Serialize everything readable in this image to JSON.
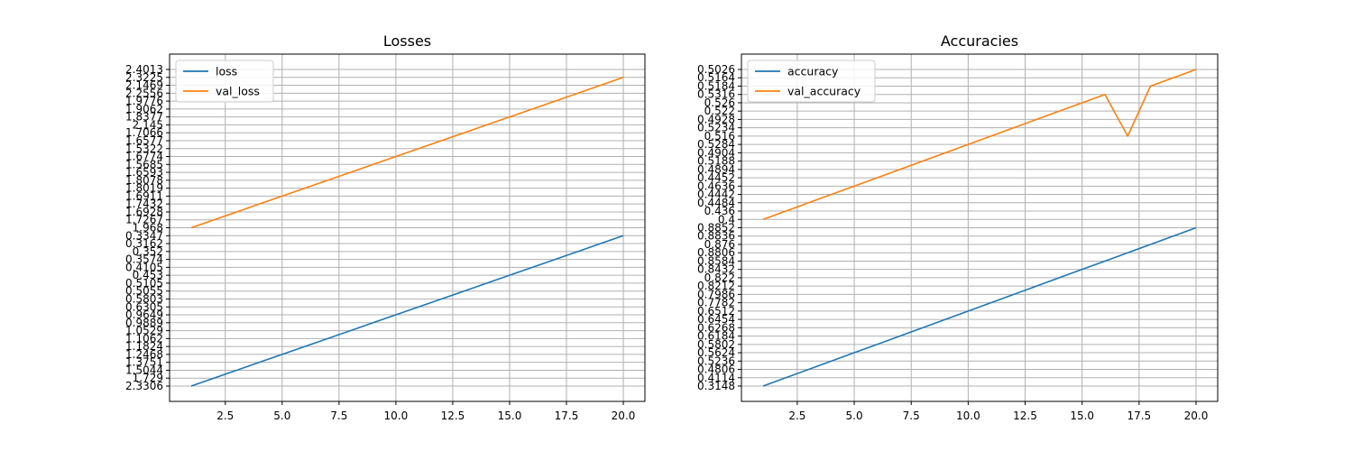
{
  "colors": {
    "series1": "#1f77b4",
    "series2": "#ff7f0e",
    "grid": "#b0b0b0"
  },
  "chart_data": [
    {
      "type": "line",
      "title": "Losses",
      "xlabel": "",
      "ylabel": "",
      "xlim": [
        0.05,
        20.95
      ],
      "xticks": [
        2.5,
        5.0,
        7.5,
        10.0,
        12.5,
        15.0,
        17.5,
        20.0
      ],
      "xtick_labels": [
        "2.5",
        "5.0",
        "7.5",
        "10.0",
        "12.5",
        "15.0",
        "17.5",
        "20.0"
      ],
      "y_axis": "categorical",
      "y_categories": [
        "2.3306",
        "1.729",
        "1.5044",
        "1.3751",
        "1.2468",
        "1.1824",
        "1.1062",
        "1.0529",
        "0.9889",
        "0.9649",
        "0.6305",
        "0.5803",
        "0.5055",
        "0.5105",
        "0.453",
        "0.4105",
        "0.3574",
        "0.352",
        "0.3162",
        "0.3347",
        "1.968",
        "1.7267",
        "1.6928",
        "1.7432",
        "1.6911",
        "1.8019",
        "1.8078",
        "1.6593",
        "1.5685",
        "1.6774",
        "1.5322",
        "1.6577",
        "1.7066",
        "2.145",
        "1.8377",
        "1.9062",
        "1.9776",
        "2.2556",
        "2.1469",
        "2.3225",
        "2.4013"
      ],
      "grid": true,
      "legend_position": "upper-left",
      "series": [
        {
          "name": "loss",
          "x": [
            1,
            2,
            3,
            4,
            5,
            6,
            7,
            8,
            9,
            10,
            11,
            12,
            13,
            14,
            15,
            16,
            17,
            18,
            19,
            20
          ],
          "values": [
            "2.3306",
            "1.729",
            "1.5044",
            "1.3751",
            "1.2468",
            "1.1824",
            "1.1062",
            "1.0529",
            "0.9889",
            "0.9649",
            "0.6305",
            "0.5803",
            "0.5055",
            "0.5105",
            "0.453",
            "0.4105",
            "0.3574",
            "0.352",
            "0.3162",
            "0.3347"
          ]
        },
        {
          "name": "val_loss",
          "x": [
            1,
            2,
            3,
            4,
            5,
            6,
            7,
            8,
            9,
            10,
            11,
            12,
            13,
            14,
            15,
            16,
            17,
            18,
            19,
            20
          ],
          "values": [
            "1.968",
            "1.7267",
            "1.6928",
            "1.7432",
            "1.6911",
            "1.8019",
            "1.8078",
            "1.6593",
            "1.5685",
            "1.6774",
            "1.5322",
            "1.6577",
            "1.7066",
            "2.145",
            "1.8377",
            "1.9062",
            "1.9776",
            "2.2556",
            "2.1469",
            "2.3225"
          ]
        }
      ]
    },
    {
      "type": "line",
      "title": "Accuracies",
      "xlabel": "",
      "ylabel": "",
      "xlim": [
        0.05,
        20.95
      ],
      "xticks": [
        2.5,
        5.0,
        7.5,
        10.0,
        12.5,
        15.0,
        17.5,
        20.0
      ],
      "xtick_labels": [
        "2.5",
        "5.0",
        "7.5",
        "10.0",
        "12.5",
        "15.0",
        "17.5",
        "20.0"
      ],
      "y_axis": "categorical",
      "y_categories": [
        "0.3148",
        "0.4114",
        "0.4806",
        "0.5236",
        "0.5624",
        "0.5802",
        "0.6184",
        "0.6268",
        "0.6454",
        "0.6512",
        "0.7782",
        "0.7986",
        "0.8212",
        "0.822",
        "0.8432",
        "0.8584",
        "0.8806",
        "0.876",
        "0.8836",
        "0.8852",
        "0.4",
        "0.436",
        "0.4484",
        "0.4442",
        "0.4636",
        "0.4452",
        "0.4894",
        "0.5188",
        "0.4904",
        "0.5284",
        "0.516",
        "0.5234",
        "0.4928",
        "0.522",
        "0.526",
        "0.5316",
        "0.5184",
        "0.5164",
        "0.5026"
      ],
      "grid": true,
      "legend_position": "upper-left",
      "series": [
        {
          "name": "accuracy",
          "x": [
            1,
            2,
            3,
            4,
            5,
            6,
            7,
            8,
            9,
            10,
            11,
            12,
            13,
            14,
            15,
            16,
            17,
            18,
            19,
            20
          ],
          "values": [
            "0.3148",
            "0.4114",
            "0.4806",
            "0.5236",
            "0.5624",
            "0.5802",
            "0.6184",
            "0.6268",
            "0.6454",
            "0.6512",
            "0.7782",
            "0.7986",
            "0.8212",
            "0.822",
            "0.8432",
            "0.8584",
            "0.8806",
            "0.876",
            "0.8836",
            "0.8852"
          ]
        },
        {
          "name": "val_accuracy",
          "x": [
            1,
            2,
            3,
            4,
            5,
            6,
            7,
            8,
            9,
            10,
            11,
            12,
            13,
            14,
            15,
            16,
            17,
            18,
            19,
            20
          ],
          "values": [
            "0.4",
            "0.436",
            "0.4484",
            "0.4442",
            "0.4636",
            "0.4452",
            "0.4894",
            "0.5188",
            "0.4904",
            "0.5284",
            "0.516",
            "0.5234",
            "0.4928",
            "0.522",
            "0.526",
            "0.5316",
            "0.516",
            "0.5184",
            "0.5164",
            "0.5026"
          ]
        }
      ]
    }
  ]
}
